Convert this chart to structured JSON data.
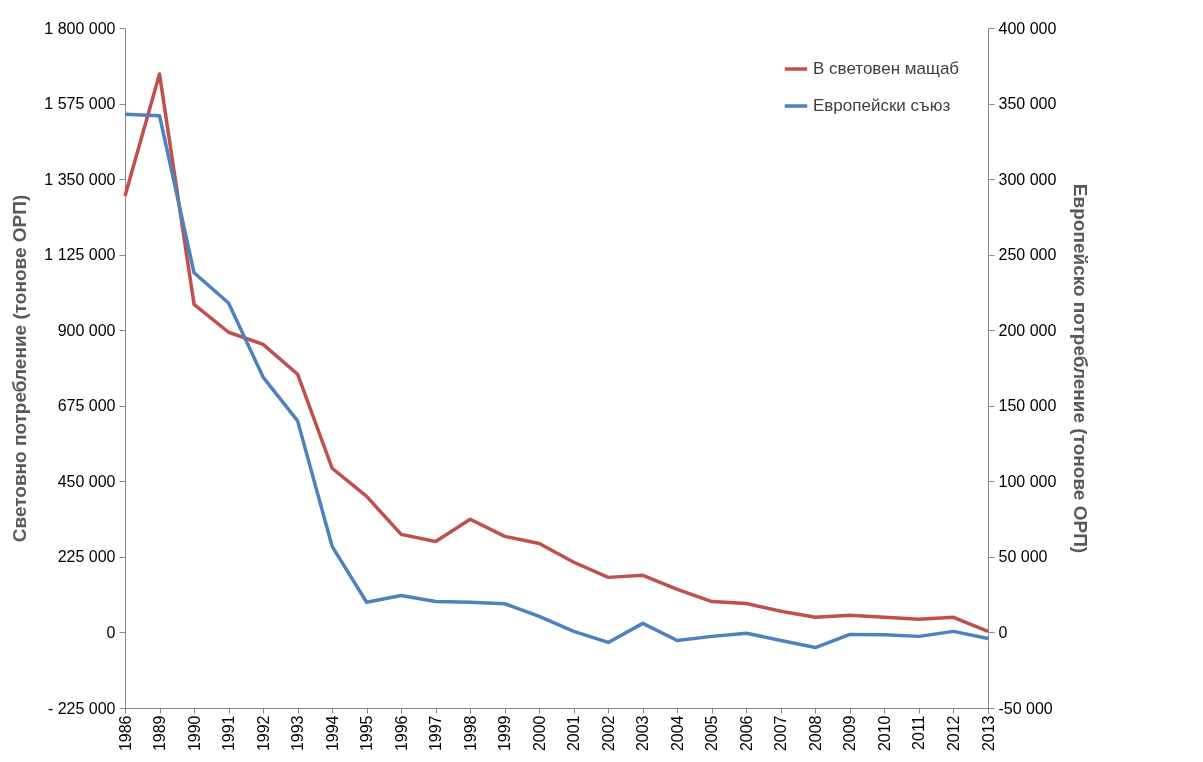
{
  "chart_data": {
    "type": "line",
    "categories": [
      "1986",
      "1989",
      "1990",
      "1991",
      "1992",
      "1993",
      "1994",
      "1995",
      "1996",
      "1997",
      "1998",
      "1999",
      "2000",
      "2001",
      "2002",
      "2003",
      "2004",
      "2005",
      "2006",
      "2007",
      "2008",
      "2009",
      "2010",
      "2011",
      "2012",
      "2013"
    ],
    "series": [
      {
        "name": "В световен мащаб",
        "color": "#c0504d",
        "values": [
          1300000,
          1663000,
          977000,
          894000,
          858000,
          769000,
          489000,
          405000,
          292000,
          271000,
          337000,
          286000,
          265000,
          209000,
          164000,
          170000,
          128000,
          92000,
          86000,
          63000,
          45000,
          51000,
          45000,
          39000,
          45000,
          3000
        ]
      },
      {
        "name": "Европейски съюз",
        "color": "#4f81bd",
        "axis": "y2",
        "values": [
          343000,
          342000,
          238000,
          218000,
          169000,
          140000,
          57000,
          20000,
          24500,
          20500,
          20000,
          19000,
          10600,
          700,
          -6600,
          6000,
          -5300,
          -2600,
          -500,
          -5300,
          -10000,
          -1300,
          -1500,
          -2600,
          700,
          -4000
        ]
      }
    ],
    "ylabel": "Световно потребление (тонове ОРП)",
    "y2label": "Европейско потребление (тонове ОРП)",
    "ylim": [
      -225000,
      1800000
    ],
    "yticks": [
      {
        "value": -225000,
        "label": "- 225 000"
      },
      0,
      {
        "value": 225000,
        "label": "225 000"
      },
      {
        "value": 450000,
        "label": "450 000"
      },
      {
        "value": 675000,
        "label": "675 000"
      },
      {
        "value": 900000,
        "label": "900 000"
      },
      {
        "value": 1125000,
        "label": "1 125 000"
      },
      {
        "value": 1350000,
        "label": "1 350 000"
      },
      {
        "value": 1575000,
        "label": "1 575 000"
      },
      {
        "value": 1800000,
        "label": "1 800 000"
      }
    ],
    "y2lim": [
      -50000,
      400000
    ],
    "y2ticks": [
      {
        "value": -50000,
        "label": "-50 000"
      },
      0,
      {
        "value": 50000,
        "label": "50 000"
      },
      {
        "value": 100000,
        "label": "100 000"
      },
      {
        "value": 150000,
        "label": "150 000"
      },
      {
        "value": 200000,
        "label": "200 000"
      },
      {
        "value": 250000,
        "label": "250 000"
      },
      {
        "value": 300000,
        "label": "300 000"
      },
      {
        "value": 350000,
        "label": "350 000"
      },
      {
        "value": 400000,
        "label": "400 000"
      }
    ],
    "grid": false,
    "legend": "top right"
  }
}
